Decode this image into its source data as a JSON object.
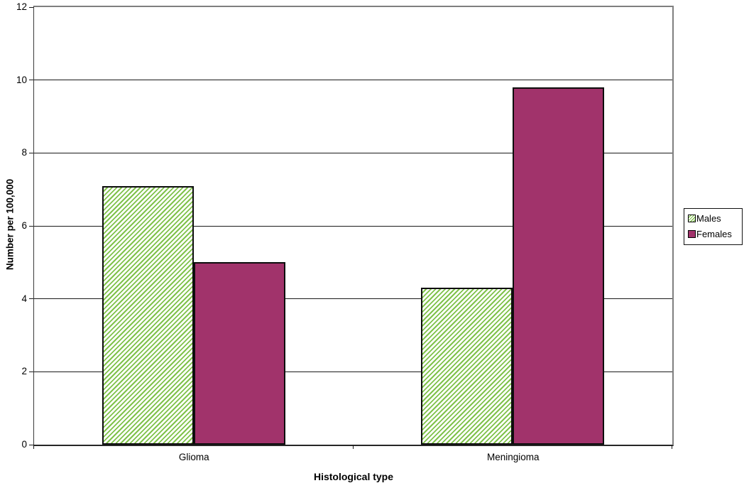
{
  "chart_data": {
    "type": "bar",
    "title": "",
    "xlabel": "Histological type",
    "ylabel": "Number per 100,000",
    "categories": [
      "Glioma",
      "Meningioma"
    ],
    "series": [
      {
        "name": "Males",
        "values": [
          7.1,
          4.3
        ],
        "fill_style": "diagonal-hatch",
        "color": "#7fc24a"
      },
      {
        "name": "Females",
        "values": [
          5.0,
          9.8
        ],
        "fill_style": "solid",
        "color": "#a1336b"
      }
    ],
    "ylim": [
      0,
      12
    ],
    "ytick_step": 2,
    "ytick_labels": [
      "0",
      "2",
      "4",
      "6",
      "8",
      "10",
      "12"
    ],
    "grid": true,
    "legend": {
      "position": "right",
      "items": [
        "Males",
        "Females"
      ]
    }
  },
  "colors": {
    "males_hatch_green": "#7fc24a",
    "females_magenta": "#a1336b",
    "bar_border": "#0d0d0d",
    "gridline": "#1a1a1a",
    "plot_border_gray": "#7f7f7f",
    "background": "#ffffff"
  }
}
